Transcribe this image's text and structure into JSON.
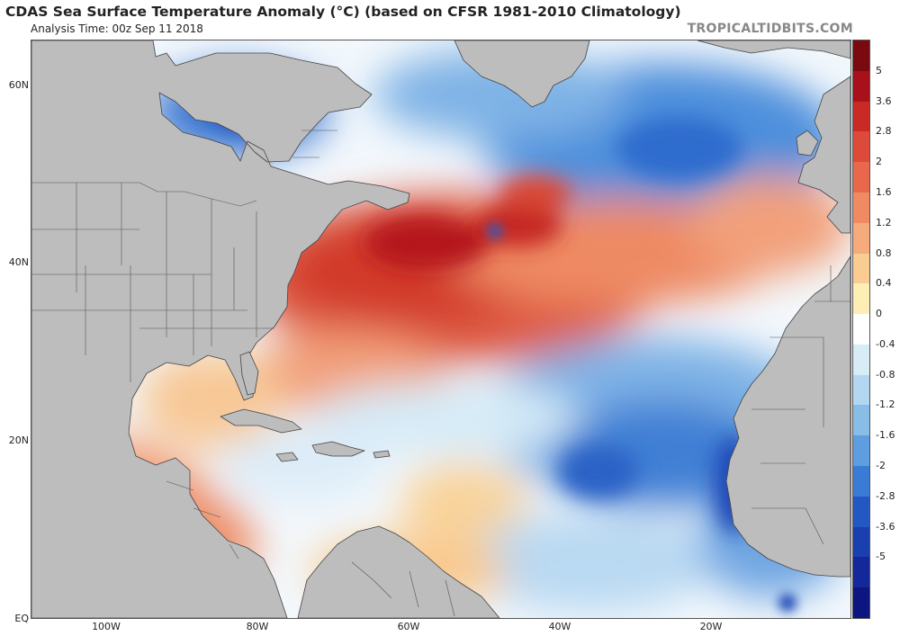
{
  "title": "CDAS Sea Surface Temperature Anomaly (°C) (based on CFSR 1981-2010 Climatology)",
  "subtitle": "Analysis Time: 00z Sep 11 2018",
  "credit": "TROPICALTIDBITS.COM",
  "latitude_labels": [
    "60N",
    "40N",
    "20N",
    "EQ"
  ],
  "longitude_labels": [
    "100W",
    "80W",
    "60W",
    "40W",
    "20W"
  ],
  "colorbar": {
    "ticks": [
      "5",
      "3.6",
      "2.8",
      "2",
      "1.6",
      "1.2",
      "0.8",
      "0.4",
      "0",
      "-0.4",
      "-0.8",
      "-1.2",
      "-1.6",
      "-2",
      "-2.8",
      "-3.6",
      "-5"
    ],
    "colors": [
      "#7a0a10",
      "#a8111c",
      "#c92a25",
      "#dd4a39",
      "#e9684c",
      "#f08a63",
      "#f5ab7c",
      "#f9cd92",
      "#fdeeb4",
      "#ffffff",
      "#d8ecf8",
      "#b3d7f1",
      "#88bde8",
      "#5d9de0",
      "#3a7bd5",
      "#2257c4",
      "#1a3fb0",
      "#14289a",
      "#0d1680"
    ]
  },
  "colors": {
    "land": "#bdbdbd",
    "warm_anomaly": "#d6402f",
    "cool_anomaly": "#2f6fd0",
    "neutral": "#ffffff"
  }
}
